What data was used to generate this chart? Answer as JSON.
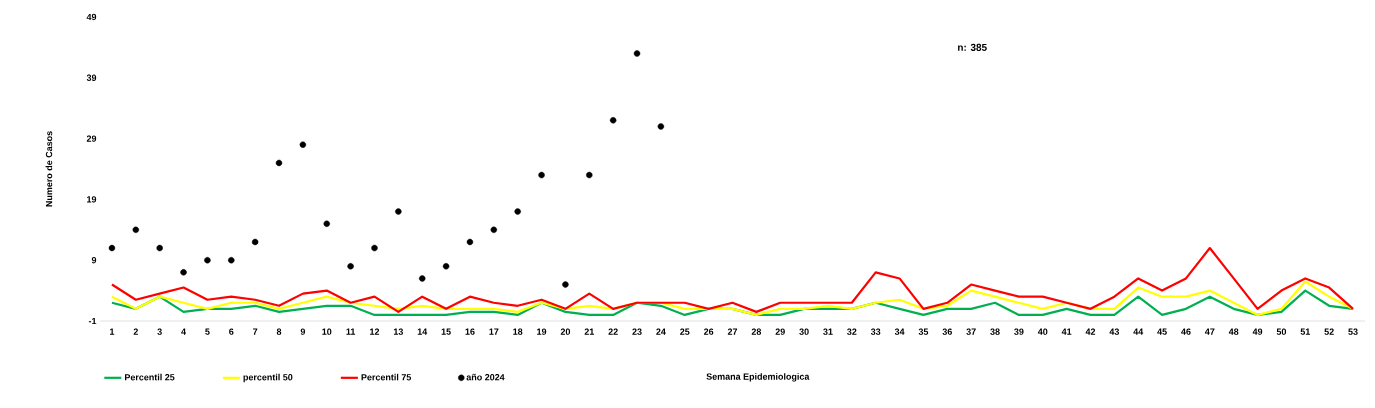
{
  "chart_data": {
    "type": "line",
    "xlabel": "Semana Epidemiologica",
    "ylabel": "Numero de Casos",
    "categories": [
      "1",
      "2",
      "3",
      "4",
      "5",
      "6",
      "7",
      "8",
      "9",
      "10",
      "11",
      "12",
      "13",
      "14",
      "15",
      "16",
      "17",
      "18",
      "19",
      "20",
      "21",
      "22",
      "23",
      "24",
      "25",
      "26",
      "27",
      "28",
      "29",
      "30",
      "31",
      "32",
      "33",
      "34",
      "35",
      "36",
      "37",
      "38",
      "39",
      "40",
      "41",
      "42",
      "43",
      "44",
      "45",
      "46",
      "47",
      "48",
      "49",
      "50",
      "51",
      "52",
      "53"
    ],
    "series": [
      {
        "name": "Percentil 25",
        "marker": "none",
        "color": "#00b050",
        "values": [
          2,
          1,
          3,
          0.5,
          1,
          1,
          1.5,
          0.5,
          1,
          1.5,
          1.5,
          0,
          0,
          0,
          0,
          0.5,
          0.5,
          0,
          2,
          0.5,
          0,
          0,
          2,
          1.5,
          0,
          1,
          1,
          0,
          0,
          1,
          1,
          1,
          2,
          1,
          0,
          1,
          1,
          2,
          0,
          0,
          1,
          0,
          0,
          3,
          0,
          1,
          3,
          1,
          0,
          0.5,
          4,
          1.5,
          1
        ]
      },
      {
        "name": "percentil 50",
        "marker": "none",
        "color": "#ffff00",
        "values": [
          3,
          1,
          3,
          2,
          1,
          2,
          2,
          1,
          2,
          3,
          2,
          1.5,
          1,
          1.5,
          1,
          1,
          1,
          0.5,
          2,
          1,
          1.5,
          1,
          2,
          2,
          1,
          1,
          1,
          0,
          1,
          1,
          1.5,
          1,
          2,
          2.5,
          1,
          1.5,
          4,
          3,
          2,
          1,
          2,
          1,
          1,
          4.5,
          3,
          3,
          4,
          2,
          0,
          1,
          5.5,
          3,
          1
        ]
      },
      {
        "name": "Percentil 75",
        "marker": "none",
        "color": "#ff0000",
        "values": [
          5,
          2.5,
          3.5,
          4.5,
          2.5,
          3,
          2.5,
          1.5,
          3.5,
          4,
          2,
          3,
          0.5,
          3,
          1,
          3,
          2,
          1.5,
          2.5,
          1,
          3.5,
          1,
          2,
          2,
          2,
          1,
          2,
          0.5,
          2,
          2,
          2,
          2,
          7,
          6,
          1,
          2,
          5,
          4,
          3,
          3,
          2,
          1,
          3,
          6,
          4,
          6,
          11,
          6,
          1,
          4,
          6,
          4.5,
          1
        ]
      },
      {
        "name": "año 2024",
        "type": "scatter",
        "color": "#000000",
        "values": [
          11,
          14,
          11,
          7,
          9,
          9,
          12,
          25,
          28,
          15,
          8,
          11,
          17,
          6,
          8,
          12,
          14,
          17,
          23,
          5,
          23,
          32,
          43,
          31,
          null,
          null,
          null,
          null,
          null,
          null,
          null,
          null,
          null,
          null,
          null,
          null,
          null,
          null,
          null,
          null,
          null,
          null,
          null,
          null,
          null,
          null,
          null,
          null,
          null,
          null,
          null,
          null,
          null
        ]
      }
    ],
    "ylim": [
      -1,
      49
    ],
    "yticks": [
      -1,
      9,
      19,
      29,
      39,
      49
    ],
    "annotations": [
      "n: 385"
    ],
    "legend": "bottom",
    "marker": "circle"
  }
}
